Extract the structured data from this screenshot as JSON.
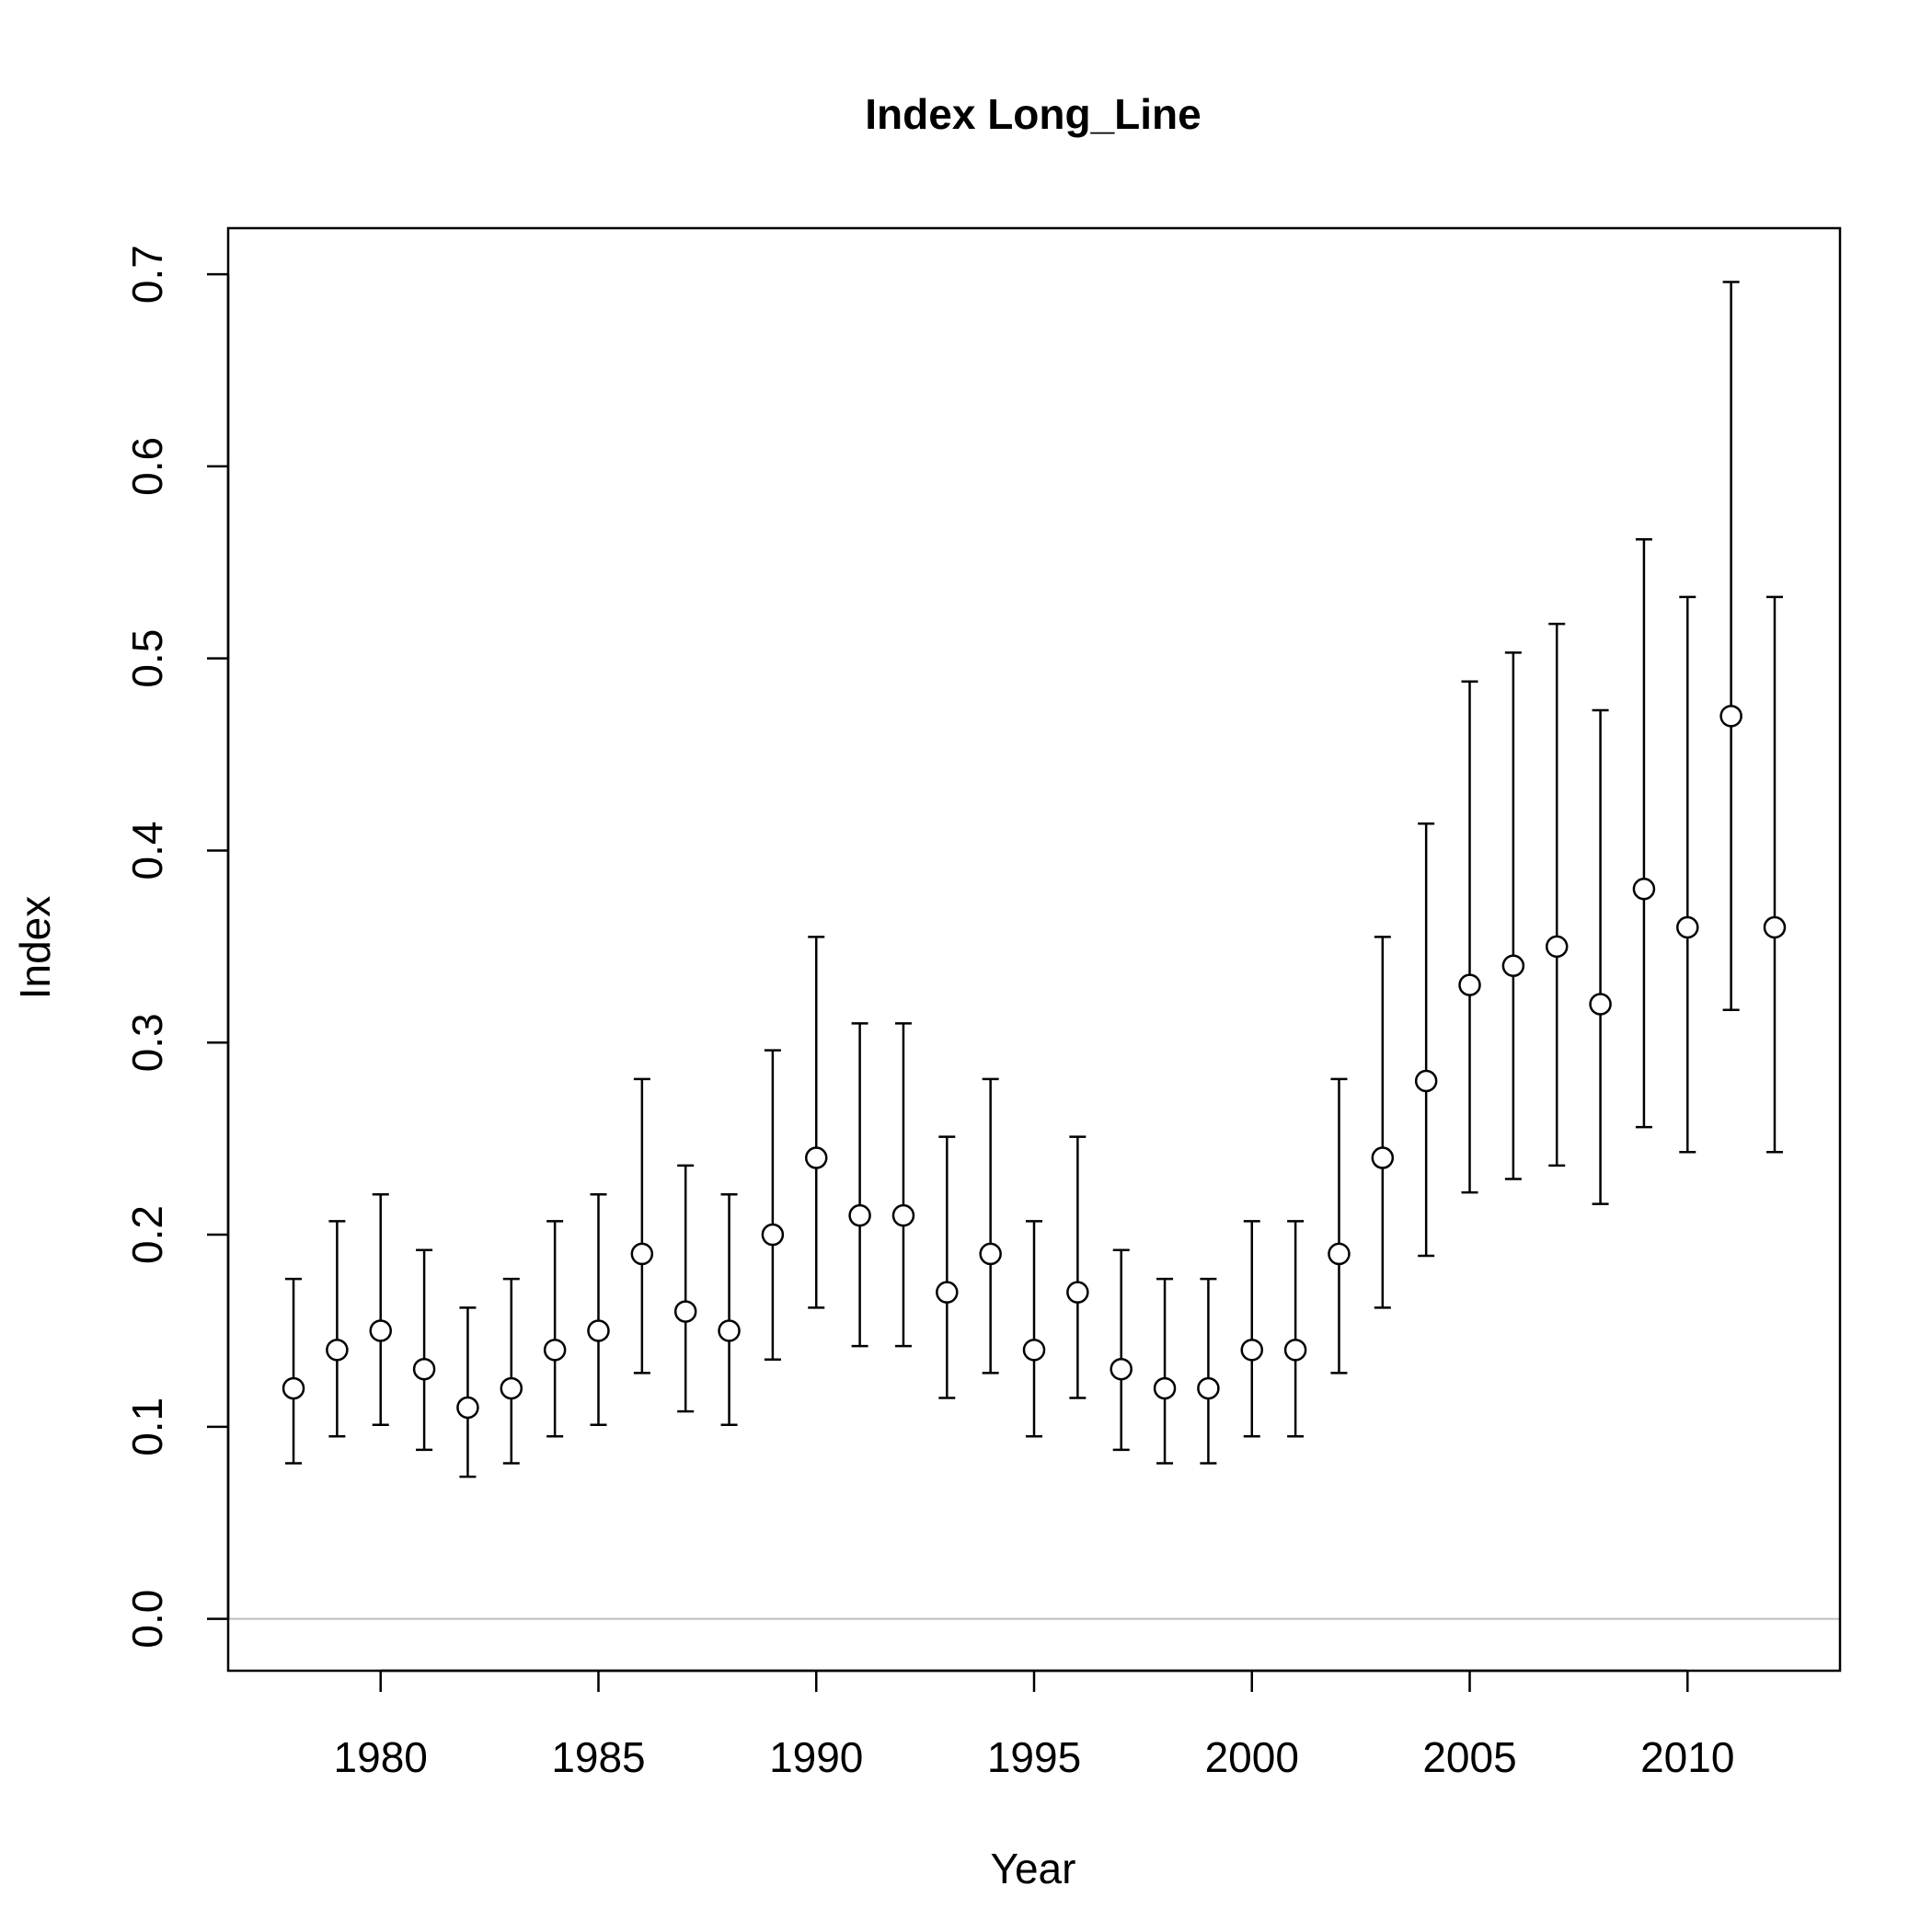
{
  "chart_data": {
    "type": "scatter",
    "title": "Index Long_Line",
    "xlabel": "Year",
    "ylabel": "Index",
    "xlim": [
      1976.5,
      2013.5
    ],
    "ylim": [
      -0.027,
      0.724
    ],
    "x_ticks": [
      1980,
      1985,
      1990,
      1995,
      2000,
      2005,
      2010
    ],
    "x_tick_labels": [
      "1980",
      "1985",
      "1990",
      "1995",
      "2000",
      "2005",
      "2010"
    ],
    "y_ticks": [
      0.0,
      0.1,
      0.2,
      0.3,
      0.4,
      0.5,
      0.6,
      0.7
    ],
    "y_tick_labels": [
      "0.0",
      "0.1",
      "0.2",
      "0.3",
      "0.4",
      "0.5",
      "0.6",
      "0.7"
    ],
    "grid": false,
    "reference_line": 0.0,
    "reference_line_color": "#bebebe",
    "marker": "open-circle",
    "x": [
      1978,
      1979,
      1980,
      1981,
      1982,
      1983,
      1984,
      1985,
      1986,
      1987,
      1988,
      1989,
      1990,
      1991,
      1992,
      1993,
      1994,
      1995,
      1996,
      1997,
      1998,
      1999,
      2000,
      2001,
      2002,
      2003,
      2004,
      2005,
      2006,
      2007,
      2008,
      2009,
      2010,
      2011,
      2012
    ],
    "values": [
      0.12,
      0.14,
      0.15,
      0.13,
      0.11,
      0.12,
      0.14,
      0.15,
      0.19,
      0.16,
      0.15,
      0.2,
      0.24,
      0.21,
      0.21,
      0.17,
      0.19,
      0.14,
      0.17,
      0.13,
      0.12,
      0.12,
      0.14,
      0.14,
      0.19,
      0.24,
      0.28,
      0.33,
      0.34,
      0.35,
      0.32,
      0.38,
      0.36,
      0.47,
      0.36
    ],
    "lower": [
      0.081,
      0.095,
      0.101,
      0.088,
      0.074,
      0.081,
      0.095,
      0.101,
      0.128,
      0.108,
      0.101,
      0.135,
      0.162,
      0.142,
      0.142,
      0.115,
      0.128,
      0.095,
      0.115,
      0.088,
      0.081,
      0.081,
      0.095,
      0.095,
      0.128,
      0.162,
      0.189,
      0.222,
      0.229,
      0.236,
      0.216,
      0.256,
      0.243,
      0.317,
      0.243
    ],
    "upper": [
      0.177,
      0.207,
      0.221,
      0.192,
      0.162,
      0.177,
      0.207,
      0.221,
      0.281,
      0.236,
      0.221,
      0.296,
      0.355,
      0.31,
      0.31,
      0.251,
      0.281,
      0.207,
      0.251,
      0.192,
      0.177,
      0.177,
      0.207,
      0.207,
      0.281,
      0.355,
      0.414,
      0.488,
      0.503,
      0.518,
      0.473,
      0.562,
      0.532,
      0.696,
      0.532
    ]
  }
}
